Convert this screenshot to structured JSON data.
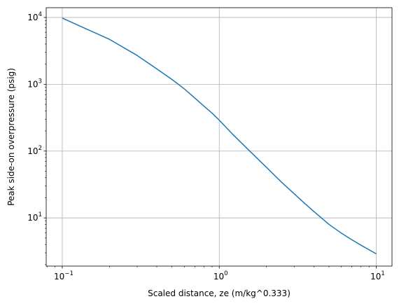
{
  "chart_data": {
    "type": "line",
    "title": "",
    "xlabel": "Scaled distance, ze (m/kg^0.333)",
    "ylabel": "Peak side-on overpressure (psig)",
    "xscale": "log",
    "yscale": "log",
    "xlim": [
      0.079,
      12.6
    ],
    "ylim": [
      1.9,
      14000
    ],
    "grid": true,
    "x_ticks": [
      {
        "value": 0.1,
        "base": "10",
        "exp": "−1"
      },
      {
        "value": 1,
        "base": "10",
        "exp": "0"
      },
      {
        "value": 10,
        "base": "10",
        "exp": "1"
      }
    ],
    "y_ticks": [
      {
        "value": 10,
        "base": "10",
        "exp": "1"
      },
      {
        "value": 100,
        "base": "10",
        "exp": "2"
      },
      {
        "value": 1000,
        "base": "10",
        "exp": "3"
      },
      {
        "value": 10000,
        "base": "10",
        "exp": "4"
      }
    ],
    "series": [
      {
        "color": "#1f77b4",
        "x": [
          0.1,
          0.2,
          0.3,
          0.4,
          0.5,
          0.6,
          0.7,
          0.8,
          0.9,
          1.0,
          1.2,
          1.5,
          2.0,
          2.5,
          3.0,
          3.5,
          4.0,
          5.0,
          6.0,
          7.0,
          8.0,
          10.0
        ],
        "y": [
          9800,
          4700,
          2700,
          1700,
          1180,
          850,
          620,
          470,
          370,
          290,
          185,
          110,
          57,
          34,
          23,
          16.5,
          12.5,
          8.0,
          5.9,
          4.7,
          3.9,
          2.9
        ]
      }
    ]
  }
}
